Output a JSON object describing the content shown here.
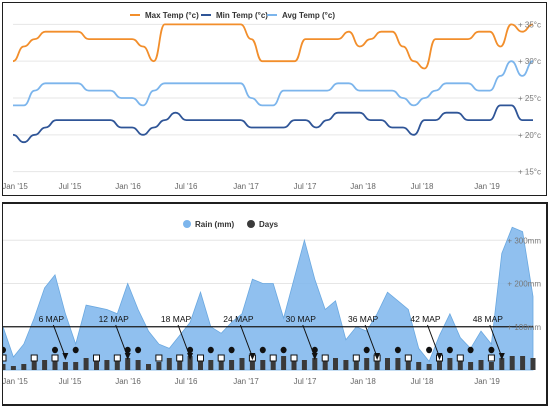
{
  "colors": {
    "max": "#f28e2b",
    "min": "#2f5597",
    "avg": "#7cb5ec",
    "rain_fill": "#7cb5ec",
    "days_bar": "#3a3a3a",
    "threshold": "#1a1a1a"
  },
  "x_axis_ticks": [
    "Jan '15",
    "Jul '15",
    "Jan '16",
    "Jul '16",
    "Jan '17",
    "Jul '17",
    "Jan '18",
    "Jul '18",
    "Jan '19"
  ],
  "chart_data": [
    {
      "type": "line",
      "legend_placement": "top-center",
      "grid": true,
      "x_start": "Jan '15",
      "x_end": "Jan '19",
      "ylim": [
        14,
        36
      ],
      "y_ticks": [
        "+ 15°c",
        "+ 20°c",
        "+ 25°c",
        "+ 30°c",
        "+ 35°c"
      ],
      "y_tick_values": [
        15,
        20,
        25,
        30,
        35
      ],
      "series": [
        {
          "name": "Max Temp (°c)",
          "values": [
            30,
            32,
            33,
            34,
            34,
            34,
            34,
            33,
            33,
            33,
            33,
            33,
            32,
            30,
            35,
            35,
            35,
            35,
            35,
            35,
            35,
            35,
            33,
            30,
            30,
            30,
            30,
            33,
            33,
            33,
            33,
            34,
            32,
            33,
            34,
            34,
            32,
            30,
            29,
            33,
            33,
            33,
            33,
            34,
            34,
            32,
            35,
            34,
            35
          ]
        },
        {
          "name": "Min Temp (°c)",
          "values": [
            20,
            19,
            20,
            21,
            22,
            22,
            22,
            22,
            22,
            22,
            21,
            21,
            20,
            21,
            22,
            23,
            22,
            22,
            22,
            22,
            22,
            22,
            21,
            21,
            21,
            21,
            22,
            22,
            21,
            22,
            23,
            23,
            23,
            22,
            22,
            21,
            21,
            20,
            22,
            22,
            23,
            23,
            22,
            22,
            22,
            24,
            24,
            22,
            22
          ]
        },
        {
          "name": "Avg Temp (°c)",
          "values": [
            24,
            24,
            26,
            27,
            27,
            27,
            27,
            26,
            26,
            26,
            25,
            25,
            24,
            26,
            27,
            27,
            27,
            27,
            27,
            27,
            27,
            27,
            25,
            24,
            24,
            26,
            26,
            26,
            26,
            26,
            27,
            27,
            26,
            26,
            26,
            26,
            25,
            24,
            25,
            26,
            27,
            27,
            27,
            26,
            26,
            28,
            30,
            28,
            30
          ]
        }
      ]
    },
    {
      "type": "area",
      "legend_placement": "top-center",
      "grid": true,
      "x_start": "Jan '15",
      "x_end": "Jan '19",
      "ylim": [
        0,
        340
      ],
      "y_ticks": [
        "+ 100mm",
        "+ 200mm",
        "+ 300mm"
      ],
      "y_tick_values": [
        100,
        200,
        300
      ],
      "threshold": 100,
      "series": [
        {
          "name": "Rain (mm)",
          "values": [
            100,
            30,
            60,
            120,
            190,
            220,
            130,
            60,
            150,
            145,
            140,
            130,
            200,
            140,
            90,
            60,
            50,
            80,
            110,
            180,
            100,
            85,
            110,
            130,
            210,
            200,
            200,
            120,
            210,
            300,
            210,
            140,
            160,
            70,
            100,
            90,
            130,
            180,
            160,
            140,
            50,
            20,
            80,
            130,
            75,
            50,
            90,
            60,
            270,
            330,
            320,
            170
          ]
        },
        {
          "name": "Days",
          "values": [
            3,
            2,
            3,
            5,
            5,
            5,
            4,
            4,
            6,
            5,
            5,
            6,
            6,
            5,
            3,
            4,
            6,
            6,
            7,
            5,
            5,
            6,
            5,
            6,
            6,
            5,
            6,
            7,
            6,
            5,
            6,
            6,
            6,
            5,
            6,
            6,
            7,
            6,
            6,
            6,
            4,
            3,
            5,
            6,
            6,
            4,
            5,
            4,
            6,
            7,
            7,
            6
          ]
        }
      ],
      "map_annotations": [
        {
          "label": "6 MAP",
          "month_index": 6
        },
        {
          "label": "12 MAP",
          "month_index": 12
        },
        {
          "label": "18 MAP",
          "month_index": 18
        },
        {
          "label": "24 MAP",
          "month_index": 24
        },
        {
          "label": "30 MAP",
          "month_index": 30
        },
        {
          "label": "36 MAP",
          "month_index": 36
        },
        {
          "label": "42 MAP",
          "month_index": 42
        },
        {
          "label": "48 MAP",
          "month_index": 48
        }
      ],
      "filled_markers_months": [
        0,
        5,
        7,
        12,
        13,
        18,
        20,
        22,
        25,
        27,
        30,
        35,
        38,
        41,
        43,
        45,
        47
      ],
      "hollow_markers_months": [
        0,
        3,
        5,
        9,
        11,
        15,
        17,
        19,
        21,
        24,
        26,
        28,
        31,
        34,
        36,
        39,
        42,
        44,
        47
      ]
    }
  ]
}
